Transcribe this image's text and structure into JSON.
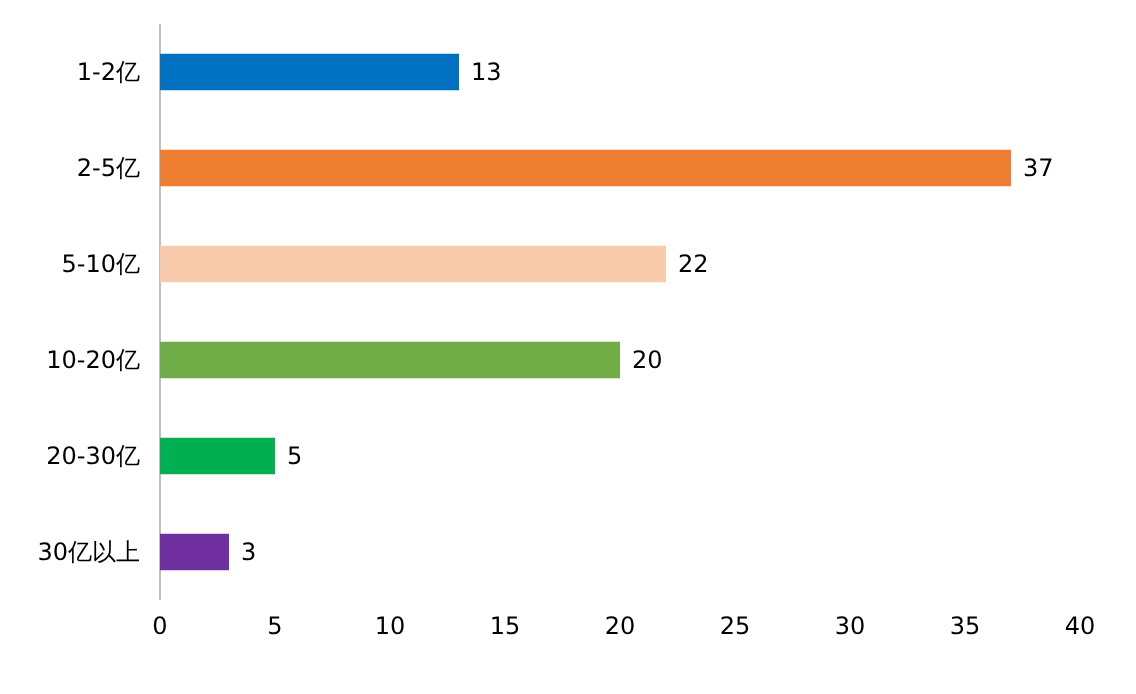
{
  "chart_data": {
    "type": "bar",
    "orientation": "horizontal",
    "categories": [
      "1-2亿",
      "2-5亿",
      "5-10亿",
      "10-20亿",
      "20-30亿",
      "30亿以上"
    ],
    "values": [
      13,
      37,
      22,
      20,
      5,
      3
    ],
    "colors": [
      "#0070c0",
      "#ed7d31",
      "#f8cbad",
      "#70ad47",
      "#00b050",
      "#7030a0"
    ],
    "xlim": [
      0,
      40
    ],
    "xticks": [
      0,
      5,
      10,
      15,
      20,
      25,
      30,
      35,
      40
    ],
    "data_labels": true
  }
}
